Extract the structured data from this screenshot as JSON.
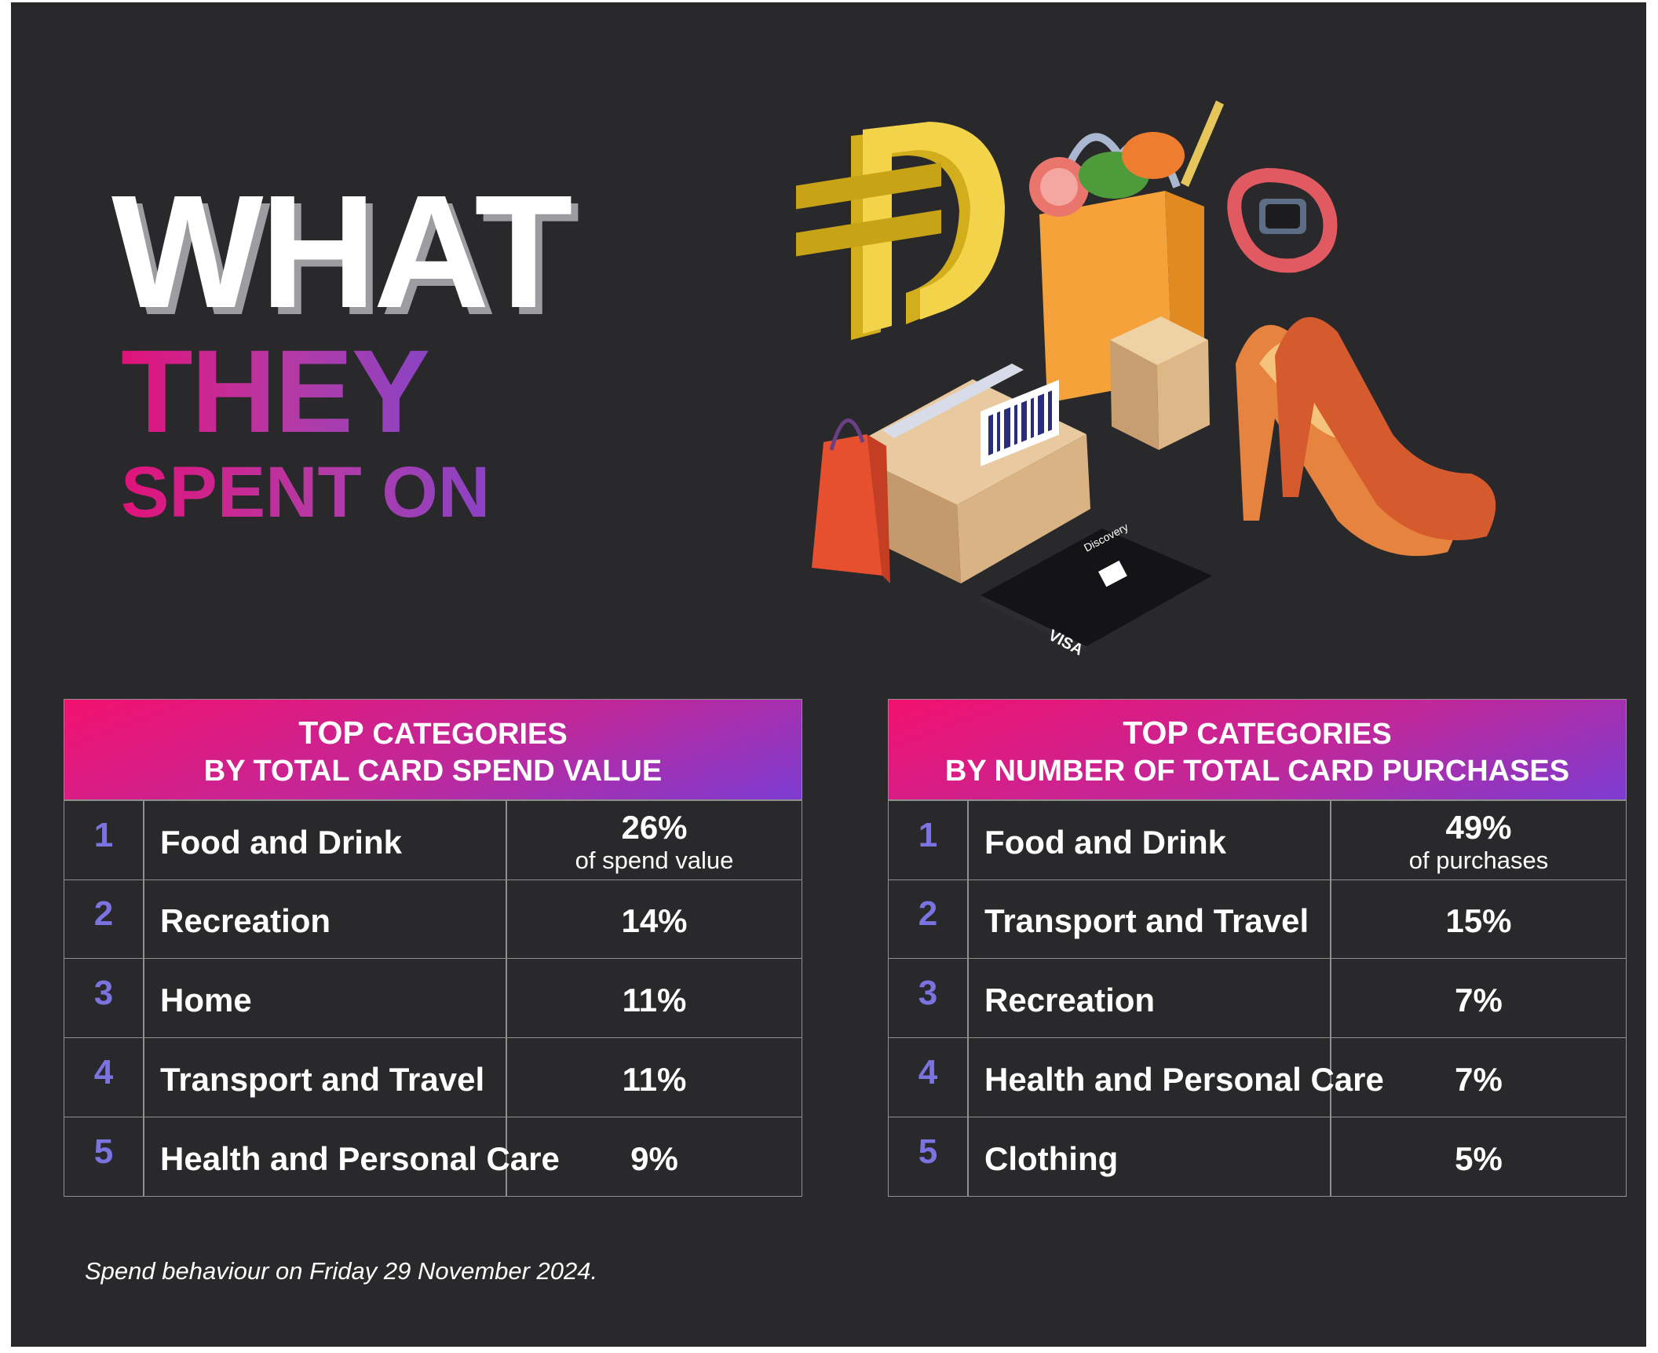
{
  "headline": {
    "what": "WHAT",
    "they": "THEY",
    "spent_on": "SPENT ON"
  },
  "illustration": {
    "icons": [
      "dirham-currency-icon",
      "grocery-bag-icon",
      "smartwatch-icon",
      "shipping-box-icon",
      "small-box-icon",
      "shopping-bag-icon",
      "high-heel-shoes-icon",
      "bank-card-icon"
    ],
    "card_brand": "Discovery",
    "card_network": "VISA"
  },
  "tables": [
    {
      "header_line1_bold": "TOP",
      "header_line1_rest": " CATEGORIES",
      "header_line2": "BY TOTAL CARD SPEND VALUE",
      "rows": [
        {
          "rank": "1",
          "category": "Food and Drink",
          "value": "26%",
          "sub": "of spend value"
        },
        {
          "rank": "2",
          "category": "Recreation",
          "value": "14%",
          "sub": ""
        },
        {
          "rank": "3",
          "category": "Home",
          "value": "11%",
          "sub": ""
        },
        {
          "rank": "4",
          "category": "Transport and Travel",
          "value": "11%",
          "sub": ""
        },
        {
          "rank": "5",
          "category": "Health and Personal Care",
          "value": "9%",
          "sub": ""
        }
      ]
    },
    {
      "header_line1_bold": "TOP",
      "header_line1_rest": " CATEGORIES",
      "header_line2": "BY NUMBER OF TOTAL CARD PURCHASES",
      "rows": [
        {
          "rank": "1",
          "category": "Food and Drink",
          "value": "49%",
          "sub": "of purchases"
        },
        {
          "rank": "2",
          "category": "Transport and Travel",
          "value": "15%",
          "sub": ""
        },
        {
          "rank": "3",
          "category": "Recreation",
          "value": "7%",
          "sub": ""
        },
        {
          "rank": "4",
          "category": "Health and Personal Care",
          "value": "7%",
          "sub": ""
        },
        {
          "rank": "5",
          "category": "Clothing",
          "value": "5%",
          "sub": ""
        }
      ]
    }
  ],
  "footnote": "Spend behaviour on Friday 29 November 2024.",
  "colors": {
    "background": "#29292b",
    "accent_pink": "#e0137a",
    "accent_purple": "#8a43c4",
    "rank_color": "#7b73e0",
    "grid_line": "#8f8f8f"
  }
}
